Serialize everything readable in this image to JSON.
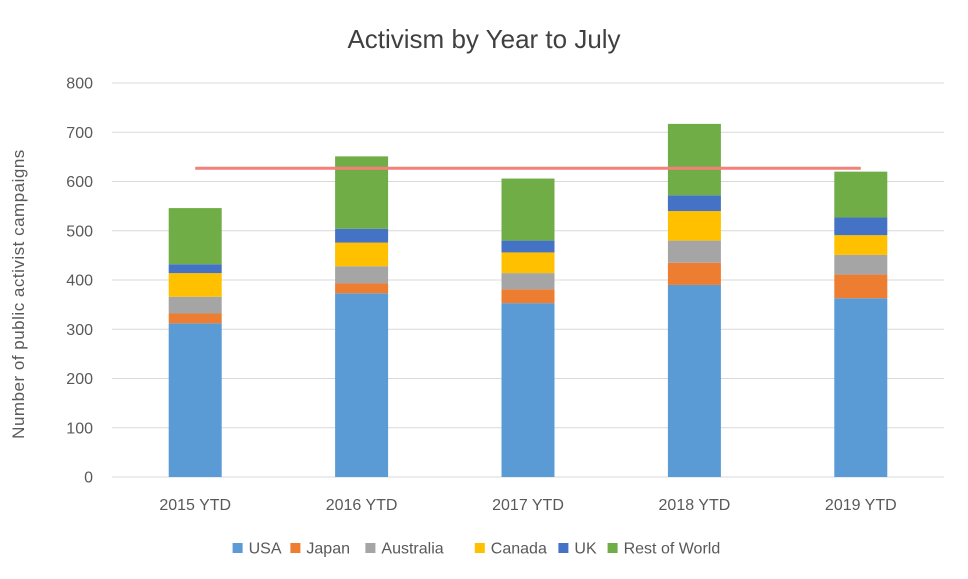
{
  "chart_data": {
    "type": "bar",
    "stacked": true,
    "title": "Activism by Year to July",
    "xlabel": "",
    "ylabel": "Number of public activist campaigns",
    "ylim": [
      0,
      800
    ],
    "yticks": [
      0,
      100,
      200,
      300,
      400,
      500,
      600,
      700,
      800
    ],
    "grid": true,
    "legend": "bottom",
    "categories": [
      "2015 YTD",
      "2016 YTD",
      "2017 YTD",
      "2018 YTD",
      "2019 YTD"
    ],
    "series": [
      {
        "name": "USA",
        "color": "#5B9BD5",
        "values": [
          312,
          373,
          353,
          390,
          363
        ]
      },
      {
        "name": "Japan",
        "color": "#ED7D31",
        "values": [
          20,
          20,
          28,
          45,
          48
        ]
      },
      {
        "name": "Australia",
        "color": "#A5A5A5",
        "values": [
          34,
          35,
          33,
          45,
          40
        ]
      },
      {
        "name": "Canada",
        "color": "#FFC000",
        "values": [
          48,
          48,
          42,
          60,
          40
        ]
      },
      {
        "name": "UK",
        "color": "#4472C4",
        "values": [
          18,
          28,
          24,
          32,
          36
        ]
      },
      {
        "name": "Rest of World",
        "color": "#70AD47",
        "values": [
          114,
          147,
          126,
          145,
          93
        ]
      }
    ],
    "reference_line": {
      "value": 627,
      "color": "#F4807A"
    }
  }
}
